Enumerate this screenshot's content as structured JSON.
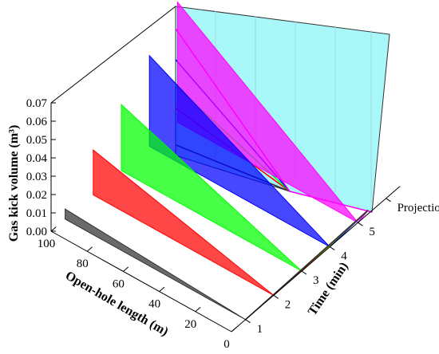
{
  "chart_data": {
    "type": "3d-area",
    "zlabel": "Gas kick volume (m³)",
    "xlabel": "Open-hole length (m)",
    "ylabel": "Time (min)",
    "z_ticks": [
      "0.00",
      "0.01",
      "0.02",
      "0.03",
      "0.04",
      "0.05",
      "0.06",
      "0.07"
    ],
    "x_ticks": [
      "100",
      "80",
      "60",
      "40",
      "20",
      "0"
    ],
    "y_ticks": [
      "1",
      "2",
      "3",
      "4",
      "5",
      "Projection"
    ],
    "zlim": [
      0,
      0.07
    ],
    "xlim": [
      0,
      100
    ],
    "series": [
      {
        "time": "1",
        "color": "#303030",
        "values": [
          [
            0,
            0
          ],
          [
            100,
            0.0055
          ]
        ]
      },
      {
        "time": "2",
        "color": "#ff0000",
        "values": [
          [
            0,
            0
          ],
          [
            100,
            0.0245
          ]
        ]
      },
      {
        "time": "3",
        "color": "#00ff00",
        "values": [
          [
            0,
            0
          ],
          [
            100,
            0.036
          ]
        ]
      },
      {
        "time": "4",
        "color": "#0000ff",
        "values": [
          [
            0,
            0
          ],
          [
            100,
            0.0495
          ]
        ]
      },
      {
        "time": "5",
        "color": "#ff00ff",
        "values": [
          [
            0,
            0
          ],
          [
            100,
            0.0655
          ]
        ]
      }
    ],
    "projection_color": "#a8f7f9"
  }
}
